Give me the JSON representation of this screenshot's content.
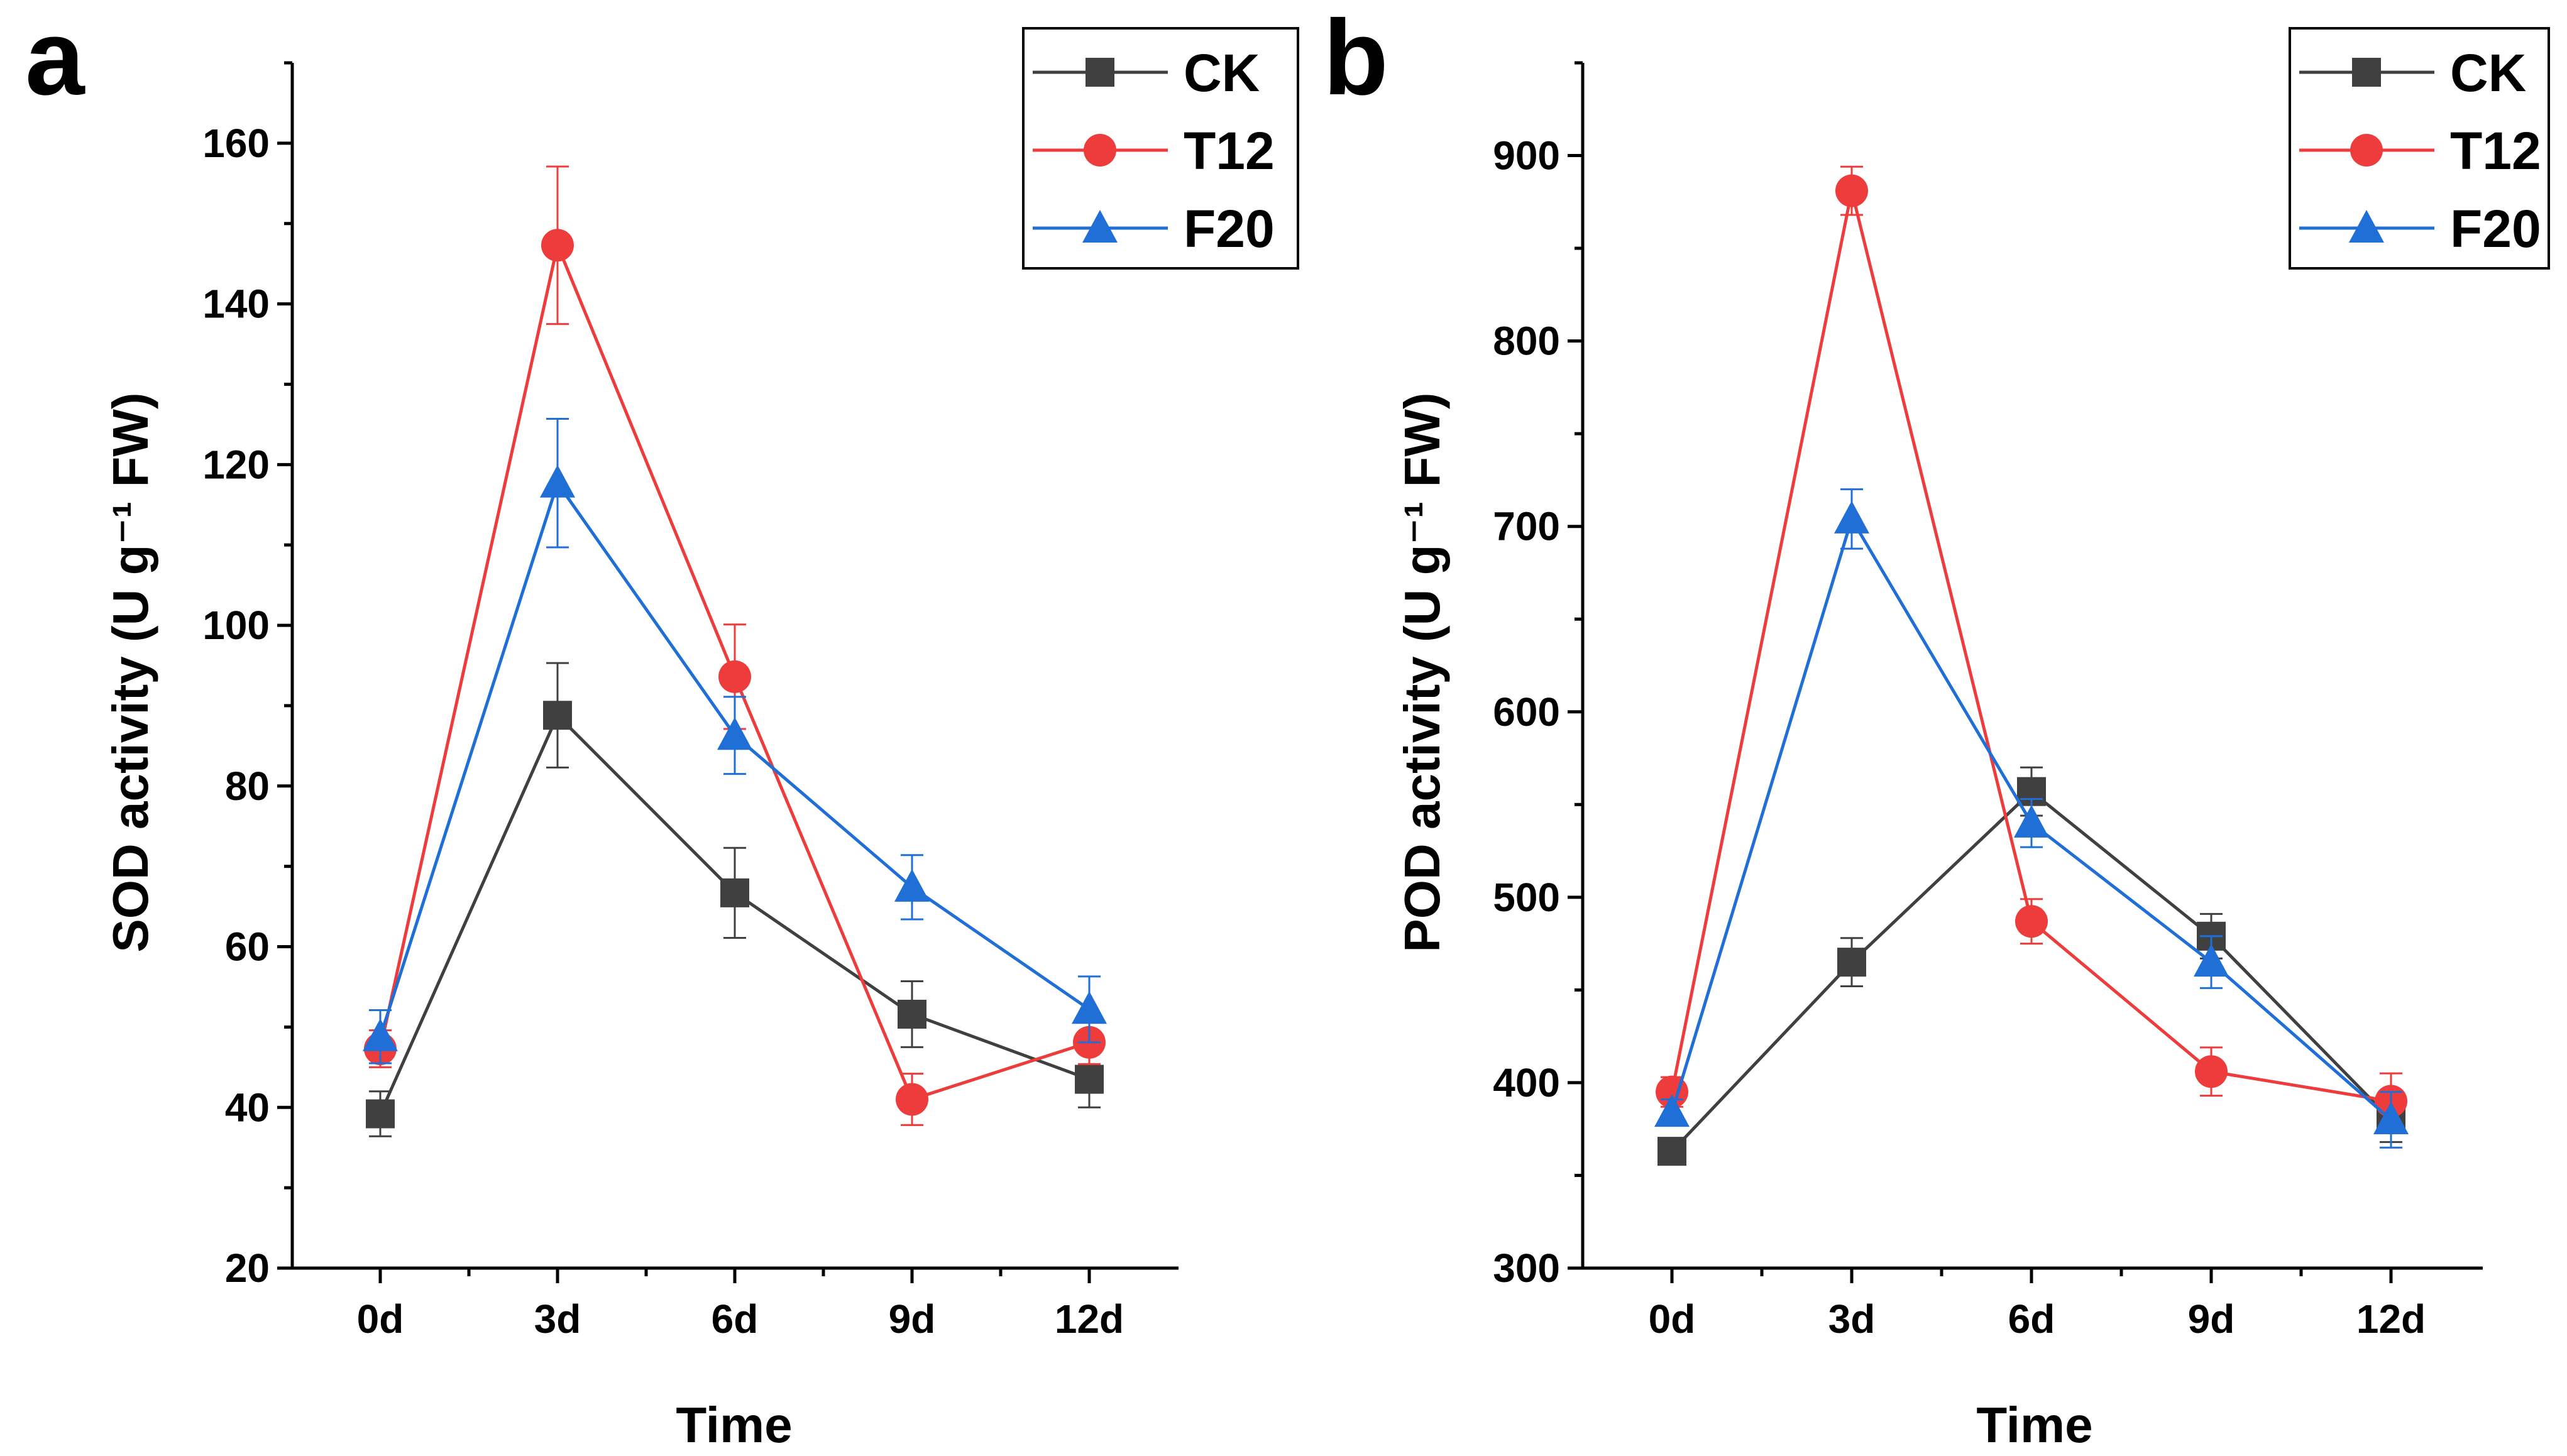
{
  "figure": {
    "series_styles": [
      {
        "name": "CK",
        "color": "#404040",
        "marker": "square"
      },
      {
        "name": "T12",
        "color": "#ee3b3b",
        "marker": "circle"
      },
      {
        "name": "F20",
        "color": "#1f6fd6",
        "marker": "triangle"
      }
    ]
  },
  "chart_data": [
    {
      "type": "line",
      "panel_label": "a",
      "title": "",
      "xlabel": "Time",
      "ylabel": "SOD activity (U g⁻¹ FW)",
      "categories": [
        "0d",
        "3d",
        "6d",
        "9d",
        "12d"
      ],
      "ylim": [
        20,
        170
      ],
      "yticks": [
        20,
        40,
        60,
        80,
        100,
        120,
        140,
        160
      ],
      "grid": false,
      "legend_position": "top-right",
      "series": [
        {
          "name": "CK",
          "values": [
            39.2,
            88.8,
            66.7,
            51.6,
            43.5
          ],
          "errors": [
            2.8,
            6.5,
            5.6,
            4.1,
            3.5
          ]
        },
        {
          "name": "T12",
          "values": [
            47.3,
            147.3,
            93.6,
            41.0,
            48.1
          ],
          "errors": [
            2.3,
            9.8,
            6.5,
            3.2,
            2.7
          ]
        },
        {
          "name": "F20",
          "values": [
            48.8,
            117.7,
            86.3,
            67.4,
            52.2
          ],
          "errors": [
            3.3,
            8.0,
            4.8,
            4.0,
            4.1
          ]
        }
      ]
    },
    {
      "type": "line",
      "panel_label": "b",
      "title": "",
      "xlabel": "Time",
      "ylabel": "POD activity (U g⁻¹ FW)",
      "categories": [
        "0d",
        "3d",
        "6d",
        "9d",
        "12d"
      ],
      "ylim": [
        300,
        950
      ],
      "yticks": [
        300,
        400,
        500,
        600,
        700,
        800,
        900
      ],
      "grid": false,
      "legend_position": "top-right",
      "series": [
        {
          "name": "CK",
          "values": [
            363,
            465,
            557,
            479,
            380
          ],
          "errors": [
            7,
            13,
            13,
            12,
            12
          ]
        },
        {
          "name": "T12",
          "values": [
            395,
            881,
            487,
            406,
            390
          ],
          "errors": [
            8,
            13,
            12,
            13,
            15
          ]
        },
        {
          "name": "F20",
          "values": [
            384,
            704,
            540,
            465,
            380
          ],
          "errors": [
            7,
            16,
            13,
            14,
            15
          ]
        }
      ]
    }
  ]
}
